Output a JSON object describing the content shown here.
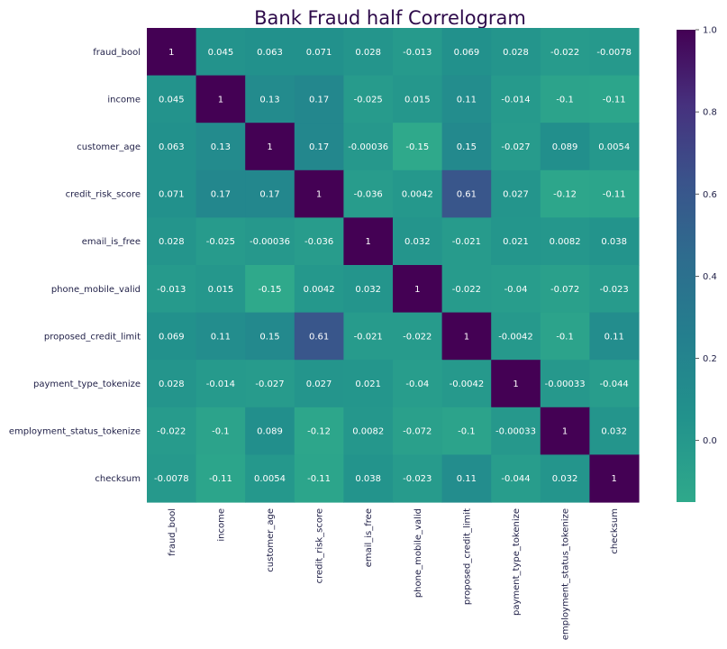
{
  "chart_data": {
    "type": "heatmap",
    "title": "Bank Fraud half Correlogram",
    "row_labels": [
      "fraud_bool",
      "income",
      "customer_age",
      "credit_risk_score",
      "email_is_free",
      "phone_mobile_valid",
      "proposed_credit_limit",
      "payment_type_tokenize",
      "employment_status_tokenize",
      "checksum"
    ],
    "col_labels": [
      "fraud_bool",
      "income",
      "customer_age",
      "credit_risk_score",
      "email_is_free",
      "phone_mobile_valid",
      "proposed_credit_limit",
      "payment_type_tokenize",
      "employment_status_tokenize",
      "checksum"
    ],
    "values": [
      [
        1,
        0.045,
        0.063,
        0.071,
        0.028,
        -0.013,
        0.069,
        0.028,
        -0.022,
        -0.0078
      ],
      [
        0.045,
        1,
        0.13,
        0.17,
        -0.025,
        0.015,
        0.11,
        -0.014,
        -0.1,
        -0.11
      ],
      [
        0.063,
        0.13,
        1,
        0.17,
        -0.00036,
        -0.15,
        0.15,
        -0.027,
        0.089,
        0.0054
      ],
      [
        0.071,
        0.17,
        0.17,
        1,
        -0.036,
        0.0042,
        0.61,
        0.027,
        -0.12,
        -0.11
      ],
      [
        0.028,
        -0.025,
        -0.00036,
        -0.036,
        1,
        0.032,
        -0.021,
        0.021,
        0.0082,
        0.038
      ],
      [
        -0.013,
        0.015,
        -0.15,
        0.0042,
        0.032,
        1,
        -0.022,
        -0.04,
        -0.072,
        -0.023
      ],
      [
        0.069,
        0.11,
        0.15,
        0.61,
        -0.021,
        -0.022,
        1,
        -0.0042,
        -0.1,
        0.11
      ],
      [
        0.028,
        -0.014,
        -0.027,
        0.027,
        0.021,
        -0.04,
        -0.0042,
        1,
        -0.00033,
        -0.044
      ],
      [
        -0.022,
        -0.1,
        0.089,
        -0.12,
        0.0082,
        -0.072,
        -0.1,
        -0.00033,
        1,
        0.032
      ],
      [
        -0.0078,
        -0.11,
        0.0054,
        -0.11,
        0.038,
        -0.023,
        0.11,
        -0.044,
        0.032,
        1
      ]
    ],
    "annotations": [
      [
        "1",
        "0.045",
        "0.063",
        "0.071",
        "0.028",
        "-0.013",
        "0.069",
        "0.028",
        "-0.022",
        "-0.0078"
      ],
      [
        "0.045",
        "1",
        "0.13",
        "0.17",
        "-0.025",
        "0.015",
        "0.11",
        "-0.014",
        "-0.1",
        "-0.11"
      ],
      [
        "0.063",
        "0.13",
        "1",
        "0.17",
        "-0.00036",
        "-0.15",
        "0.15",
        "-0.027",
        "0.089",
        "0.0054"
      ],
      [
        "0.071",
        "0.17",
        "0.17",
        "1",
        "-0.036",
        "0.0042",
        "0.61",
        "0.027",
        "-0.12",
        "-0.11"
      ],
      [
        "0.028",
        "-0.025",
        "-0.00036",
        "-0.036",
        "1",
        "0.032",
        "-0.021",
        "0.021",
        "0.0082",
        "0.038"
      ],
      [
        "-0.013",
        "0.015",
        "-0.15",
        "0.0042",
        "0.032",
        "1",
        "-0.022",
        "-0.04",
        "-0.072",
        "-0.023"
      ],
      [
        "0.069",
        "0.11",
        "0.15",
        "0.61",
        "-0.021",
        "-0.022",
        "1",
        "-0.0042",
        "-0.1",
        "0.11"
      ],
      [
        "0.028",
        "-0.014",
        "-0.027",
        "0.027",
        "0.021",
        "-0.04",
        "-0.0042",
        "1",
        "-0.00033",
        "-0.044"
      ],
      [
        "-0.022",
        "-0.1",
        "0.089",
        "-0.12",
        "0.0082",
        "-0.072",
        "-0.1",
        "-0.00033",
        "1",
        "0.032"
      ],
      [
        "-0.0078",
        "-0.11",
        "0.0054",
        "-0.11",
        "0.038",
        "-0.023",
        "0.11",
        "-0.044",
        "0.032",
        "1"
      ]
    ],
    "colorbar": {
      "range": [
        -0.15,
        1.0
      ],
      "ticks": [
        0.0,
        0.2,
        0.4,
        0.6,
        0.8,
        1.0
      ],
      "tick_labels": [
        "0.0",
        "0.2",
        "0.4",
        "0.6",
        "0.8",
        "1.0"
      ],
      "colormap": "viridis (upper portion)",
      "color_low": "#2fa98b",
      "color_high": "#440154"
    },
    "legend": "right",
    "grid": false
  }
}
